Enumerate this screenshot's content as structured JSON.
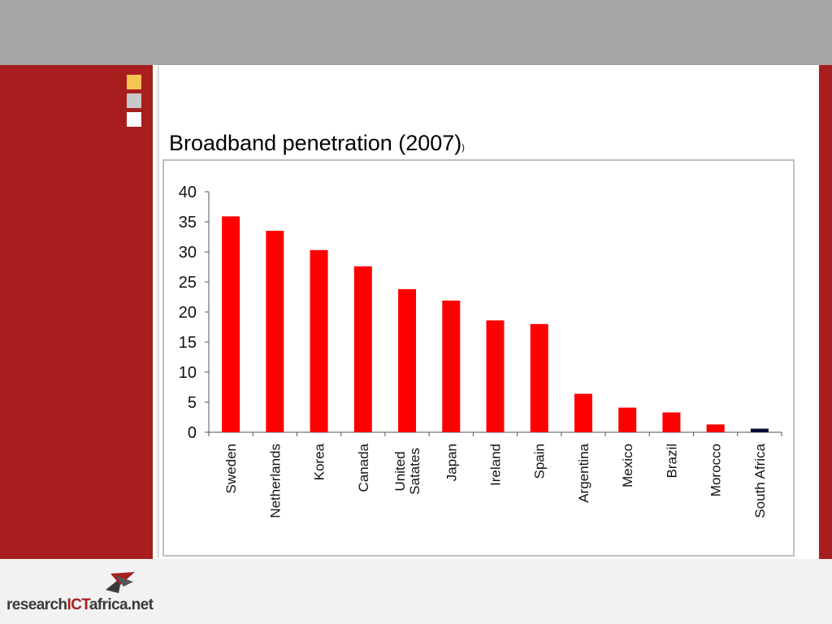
{
  "slide": {
    "title": "Broadband penetration (2007)",
    "title_suffix": ")"
  },
  "logo": {
    "part1": "research",
    "part2": "ICT",
    "part3": "africa",
    "part4": ".net"
  },
  "colors": {
    "accent_red": "#a81e1e",
    "bar_red": "#ff0000",
    "bar_dark": "#0a0a3a",
    "square_yellow": "#f5c453",
    "square_grey": "#c8c8c8"
  },
  "chart_data": {
    "type": "bar",
    "title": "",
    "xlabel": "",
    "ylabel": "",
    "ylim": [
      0,
      40
    ],
    "yticks": [
      0,
      5,
      10,
      15,
      20,
      25,
      30,
      35,
      40
    ],
    "grid": false,
    "categories": [
      "Sweden",
      "Netherlands",
      "Korea",
      "Canada",
      "United Satates",
      "Japan",
      "Ireland",
      "Spain",
      "Argentina",
      "Mexico",
      "Brazil",
      "Morocco",
      "South Africa"
    ],
    "category_lines": [
      [
        "Sweden"
      ],
      [
        "Netherlands"
      ],
      [
        "Korea"
      ],
      [
        "Canada"
      ],
      [
        "United",
        "Satates"
      ],
      [
        "Japan"
      ],
      [
        "Ireland"
      ],
      [
        "Spain"
      ],
      [
        "Argentina"
      ],
      [
        "Mexico"
      ],
      [
        "Brazil"
      ],
      [
        "Morocco"
      ],
      [
        "South Africa"
      ]
    ],
    "values": [
      35.9,
      33.5,
      30.3,
      27.6,
      23.8,
      21.9,
      18.6,
      18.0,
      6.4,
      4.1,
      3.3,
      1.3,
      0.6
    ],
    "bar_colors": [
      "#ff0000",
      "#ff0000",
      "#ff0000",
      "#ff0000",
      "#ff0000",
      "#ff0000",
      "#ff0000",
      "#ff0000",
      "#ff0000",
      "#ff0000",
      "#ff0000",
      "#ff0000",
      "#0a0a3a"
    ]
  }
}
